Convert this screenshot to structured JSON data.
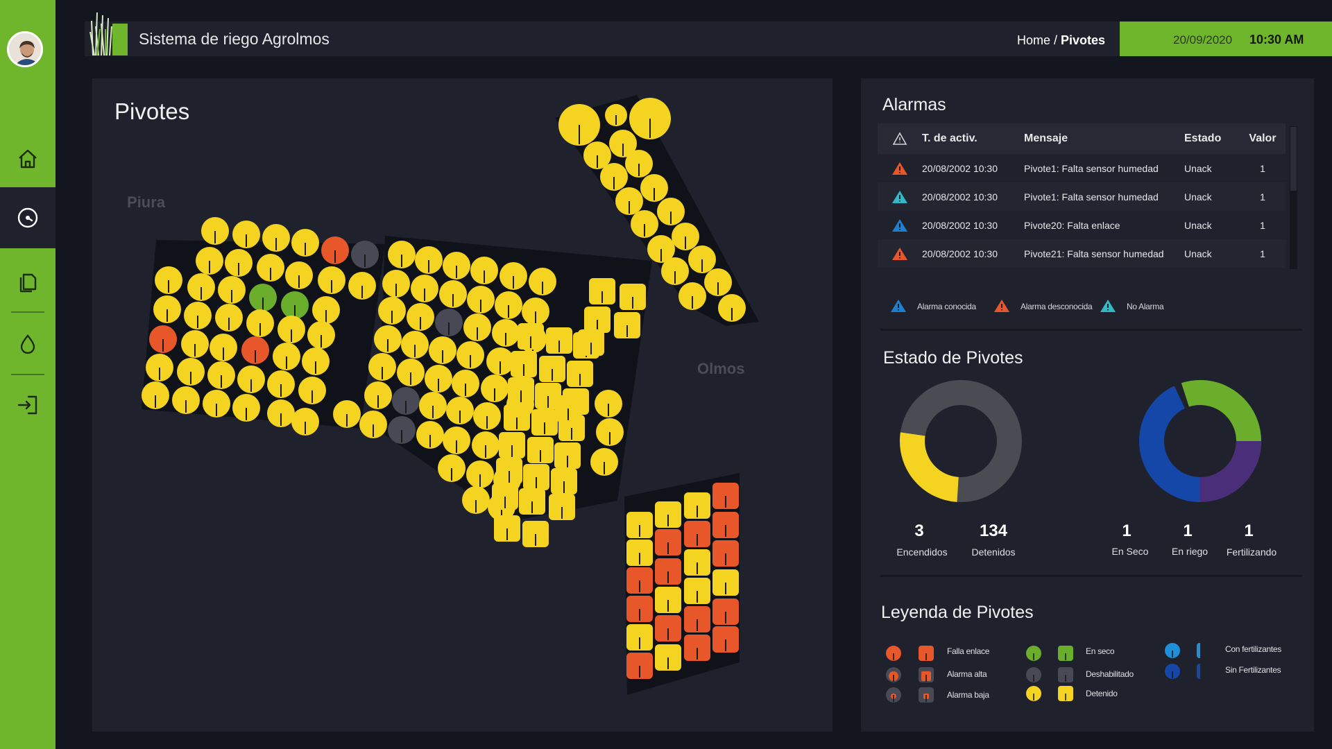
{
  "app": {
    "title": "Sistema de riego Agrolmos"
  },
  "breadcrumb": {
    "home": "Home",
    "separator": " / ",
    "current": "Pivotes"
  },
  "datetime": {
    "date": "20/09/2020",
    "time": "10:30 AM"
  },
  "sidebar": {
    "items": [
      {
        "name": "home",
        "icon": "home-icon"
      },
      {
        "name": "dashboard",
        "icon": "gauge-icon",
        "active": true
      },
      {
        "name": "documents",
        "icon": "documents-icon"
      },
      {
        "name": "water",
        "icon": "drop-icon"
      },
      {
        "name": "logout",
        "icon": "login-icon"
      }
    ]
  },
  "map": {
    "title": "Pivotes",
    "regions": [
      "Piura",
      "Olmos"
    ]
  },
  "alarms": {
    "title": "Alarmas",
    "columns": {
      "time": "T. de activ.",
      "message": "Mensaje",
      "status": "Estado",
      "value": "Valor"
    },
    "rows": [
      {
        "icon": "orange",
        "time": "20/08/2002 10:30",
        "message": "Pivote1: Falta sensor humedad",
        "status": "Unack",
        "value": "1"
      },
      {
        "icon": "teal",
        "time": "20/08/2002 10:30",
        "message": "Pivote1: Falta sensor humedad",
        "status": "Unack",
        "value": "1"
      },
      {
        "icon": "blue",
        "time": "20/08/2002 10:30",
        "message": "Pivote20: Falta enlace",
        "status": "Unack",
        "value": "1"
      },
      {
        "icon": "orange",
        "time": "20/08/2002 10:30",
        "message": "Pivote21: Falta sensor humedad",
        "status": "Unack",
        "value": "1"
      }
    ],
    "legend": {
      "known": "Alarma conocida",
      "unknown": "Alarma desconocida",
      "none": "No Alarma"
    }
  },
  "status": {
    "title": "Estado de Pivotes",
    "donut1": {
      "on": "3",
      "on_label": "Encendidos",
      "off": "134",
      "off_label": "Detenidos"
    },
    "donut2": {
      "dry": "1",
      "dry_label": "En Seco",
      "irrigating": "1",
      "irrigating_label": "En riego",
      "fertilizing": "1",
      "fertilizing_label": "Fertilizando"
    }
  },
  "legend": {
    "title": "Leyenda de Pivotes",
    "items": {
      "link_fail": "Falla enlace",
      "alarm_high": "Alarma alta",
      "alarm_low": "Alarma baja",
      "dry": "En seco",
      "disabled": "Deshabilitado",
      "stopped": "Detenido",
      "with_fert": "Con fertilizantes",
      "without_fert": "Sin Fertilizantes"
    }
  },
  "colors": {
    "accent_green": "#6fb62c",
    "pivot_yellow": "#f5d421",
    "pivot_orange": "#e8572a",
    "pivot_green": "#6aae2c",
    "pivot_gray": "#474a55",
    "fert_light_blue": "#1e8fd8",
    "fert_dark_blue": "#1547a8",
    "donut_purple": "#4a2e7a"
  }
}
